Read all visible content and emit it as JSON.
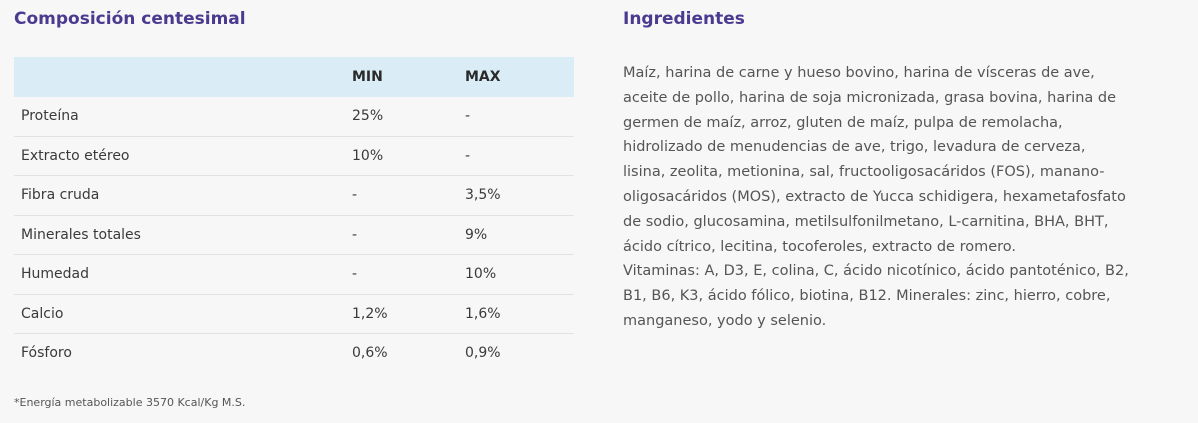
{
  "composition": {
    "title": "Composición centesimal",
    "headers": {
      "name": "",
      "min": "MIN",
      "max": "MAX"
    },
    "rows": [
      {
        "name": "Proteína",
        "min": "25%",
        "max": "-"
      },
      {
        "name": "Extracto etéreo",
        "min": "10%",
        "max": "-"
      },
      {
        "name": "Fibra cruda",
        "min": "-",
        "max": "3,5%"
      },
      {
        "name": "Minerales totales",
        "min": "-",
        "max": "9%"
      },
      {
        "name": "Humedad",
        "min": "-",
        "max": "10%"
      },
      {
        "name": "Calcio",
        "min": "1,2%",
        "max": "1,6%"
      },
      {
        "name": "Fósforo",
        "min": "0,6%",
        "max": "0,9%"
      }
    ],
    "footnote": "*Energía metabolizable 3570 Kcal/Kg M.S."
  },
  "ingredients": {
    "title": "Ingredientes",
    "lines": [
      "Maíz, harina de carne y hueso bovino, harina de vísceras de ave,",
      "aceite de pollo, harina de soja micronizada, grasa bovina, harina de",
      "germen de maíz, arroz, gluten de maíz, pulpa de remolacha,",
      "hidrolizado de menudencias de ave, trigo, levadura de cerveza,",
      "lisina, zeolita, metionina, sal, fructooligosacáridos (FOS), manano-",
      "oligosacáridos (MOS), extracto de Yucca schidigera, hexametafosfato",
      "de sodio, glucosamina, metilsulfonilmetano, L-carnitina, BHA, BHT,",
      "ácido cítrico, lecitina, tocoferoles, extracto de romero.",
      "Vitaminas: A, D3, E, colina, C, ácido nicotínico, ácido pantoténico, B2,",
      "B1, B6, K3, ácido fólico, biotina, B12. Minerales: zinc, hierro, cobre,",
      "manganeso, yodo y selenio."
    ]
  },
  "colors": {
    "title": "#4b3a8f",
    "table_header_bg": "#daedf7",
    "background": "#f7f7f7"
  }
}
